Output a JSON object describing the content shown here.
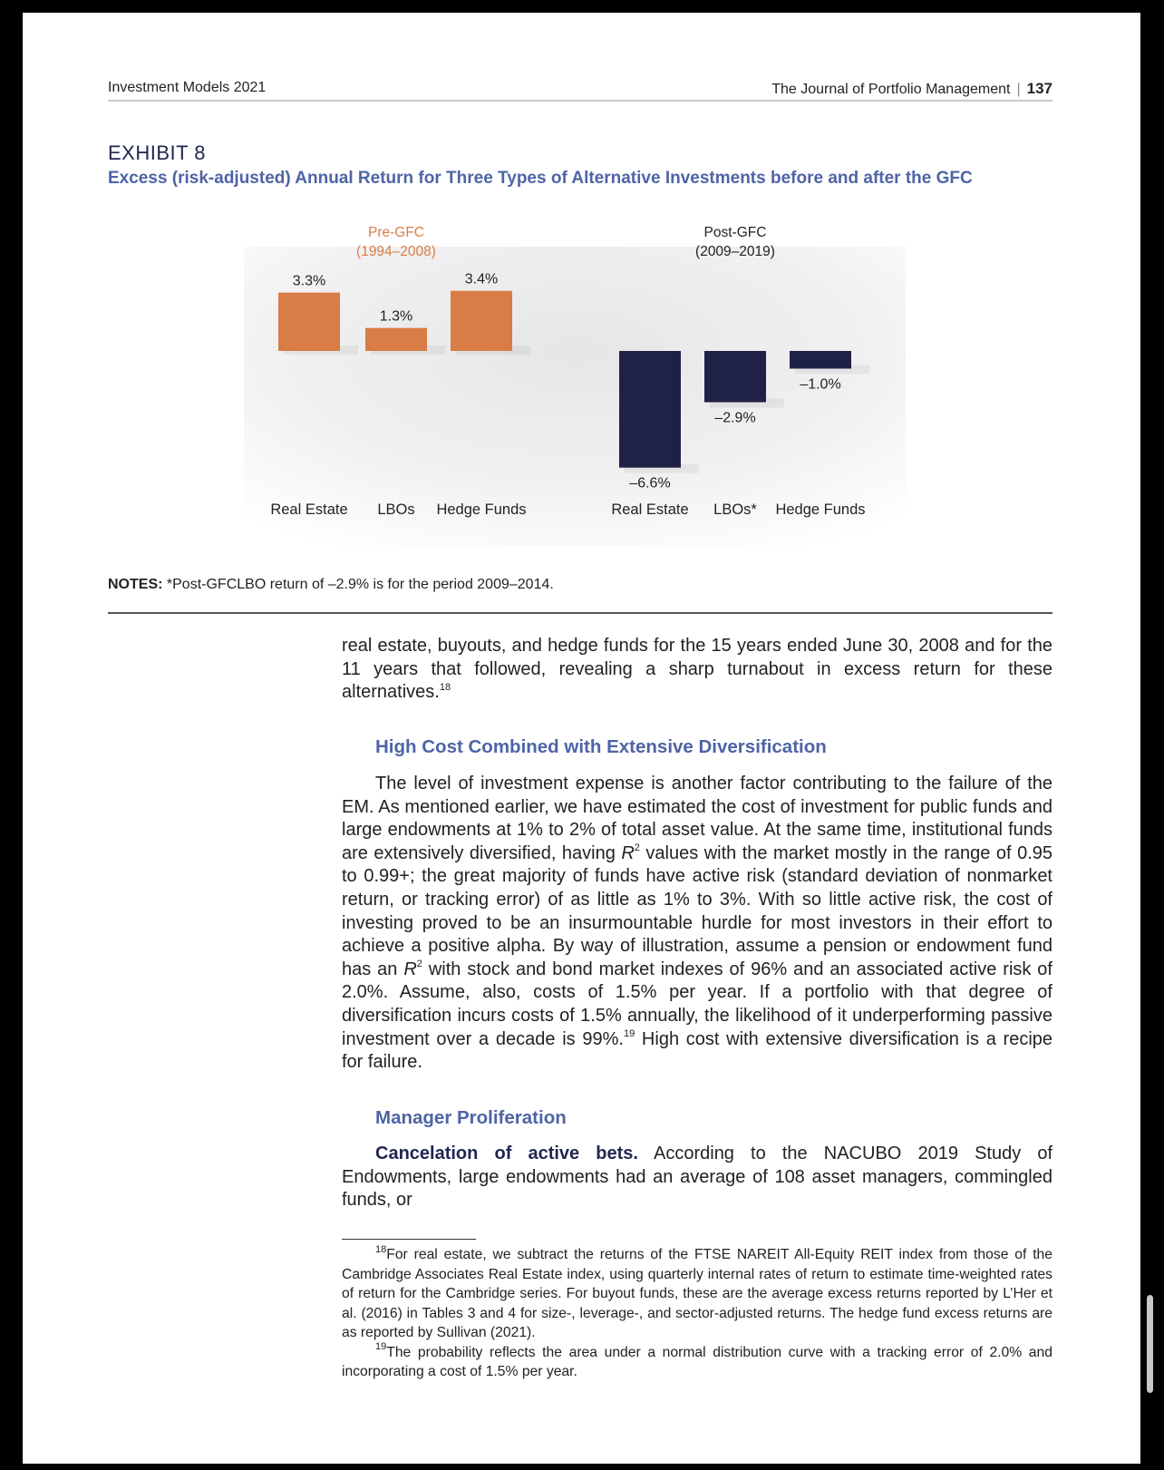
{
  "header": {
    "left": "Investment Models 2021",
    "journal": "The Journal of Portfolio Management",
    "separator": "|",
    "page_number": "137"
  },
  "exhibit": {
    "label": "EXHIBIT 8",
    "title": "Excess (risk-adjusted) Annual Return for Three Types of Alternative Investments before and after the GFC"
  },
  "chart_data": {
    "type": "bar",
    "panels": [
      {
        "title_line1": "Pre-GFC",
        "title_line2": "(1994–2008)",
        "categories": [
          "Real Estate",
          "LBOs",
          "Hedge Funds"
        ],
        "values": [
          3.3,
          1.3,
          3.4
        ],
        "labels": [
          "3.3%",
          "1.3%",
          "3.4%"
        ],
        "color": "#d97c45"
      },
      {
        "title_line1": "Post-GFC",
        "title_line2": "(2009–2019)",
        "categories": [
          "Real Estate",
          "LBOs*",
          "Hedge Funds"
        ],
        "values": [
          -6.6,
          -2.9,
          -1.0
        ],
        "labels": [
          "–6.6%",
          "–2.9%",
          "–1.0%"
        ],
        "color": "#1f2146"
      }
    ],
    "pre_title_color": "#d97c45",
    "post_title_color": "#222222"
  },
  "notes": {
    "label": "NOTES:",
    "text": "*Post-GFCLBO return of –2.9% is for the period 2009–2014."
  },
  "body": {
    "p1": "real estate, buyouts, and hedge funds for the 15 years ended June 30, 2008 and for the 11 years that followed, revealing a sharp turnabout in excess return for these alternatives.",
    "p1_sup": "18",
    "section1_heading": "High Cost Combined with Extensive Diversification",
    "p2_a": "The level of investment expense is another factor contributing to the failure of the EM. As mentioned earlier, we have estimated the cost of investment for public funds and large endowments at 1% to 2% of total asset value. At the same time, institutional funds are extensively diversified, having ",
    "r": "R",
    "two": "2",
    "p2_b": " values with the market mostly in the range of 0.95 to 0.99+; the great majority of funds have active risk (standard deviation of nonmarket return, or tracking error) of as little as 1% to 3%. With so little active risk, the cost of investing proved to be an insurmountable hurdle for most investors in their effort to achieve a positive alpha. By way of illustration, assume a pension or endowment fund has an ",
    "p2_c": " with stock and bond market indexes of 96% and an associated active risk of 2.0%. Assume, also, costs of 1.5% per year. If a portfolio with that degree of diversification incurs costs of 1.5% annually, the likelihood of it underperforming passive investment over a decade is 99%.",
    "p2_sup": "19",
    "p2_d": " High cost with extensive diversification is a recipe for failure.",
    "section2_heading": "Manager Proliferation",
    "p3_runin": "Cancelation of active bets.",
    "p3": " According to the NACUBO 2019 Study of Endowments, large endowments had an average of 108 asset managers, commingled funds, or"
  },
  "footnotes": {
    "fn18_num": "18",
    "fn18": "For real estate, we subtract the returns of the FTSE NAREIT All-Equity REIT index from those of the Cambridge Associates Real Estate index, using quarterly internal rates of return to estimate time-weighted rates of return for the Cambridge series. For buyout funds, these are the average excess returns reported by L’Her et al. (2016) in Tables 3 and 4 for size-, leverage-, and sector-adjusted returns. The hedge fund excess returns are as reported by Sullivan (2021).",
    "fn19_num": "19",
    "fn19": "The probability reflects the area under a normal distribution curve with a tracking error of 2.0% and incorporating a cost of 1.5% per year."
  }
}
